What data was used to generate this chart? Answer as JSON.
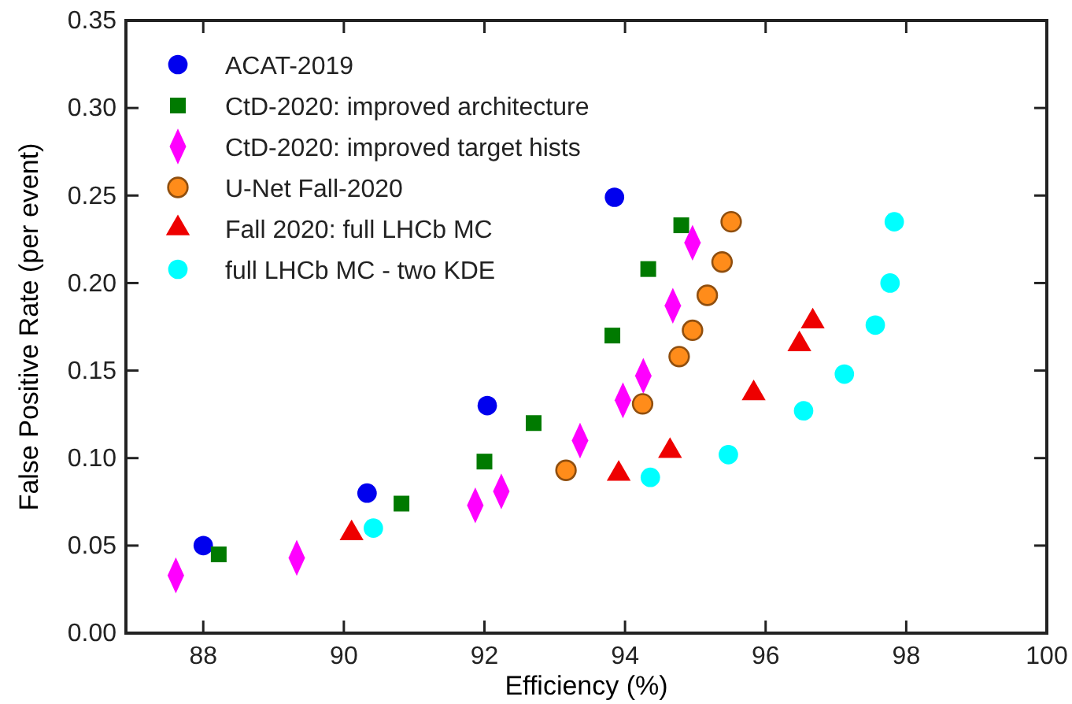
{
  "chart_data": {
    "type": "scatter",
    "xlabel": "Efficiency (%)",
    "ylabel": "False Positive Rate (per event)",
    "xlim": [
      86.9,
      100
    ],
    "xticks": [
      88,
      90,
      92,
      94,
      96,
      98,
      100
    ],
    "ylim": [
      0,
      0.35
    ],
    "yticks": [
      {
        "value": 0,
        "label": "0.00"
      },
      0.05,
      {
        "value": 0.1,
        "label": "0.10"
      },
      0.15,
      {
        "value": 0.2,
        "label": "0.20"
      },
      0.25,
      {
        "value": 0.3,
        "label": "0.30"
      },
      0.35
    ],
    "grid": false,
    "legend": "top left",
    "series": [
      {
        "name": "ACAT-2019",
        "color": "#0000ee",
        "marker": "circle",
        "x": [
          88.0,
          90.33,
          92.04,
          93.85
        ],
        "values": [
          0.05,
          0.08,
          0.13,
          0.249
        ]
      },
      {
        "name": "CtD-2020: improved architecture",
        "color": "#007a00",
        "marker": "square",
        "x": [
          88.22,
          90.82,
          92.0,
          92.7,
          93.82,
          94.33,
          94.8
        ],
        "values": [
          0.045,
          0.074,
          0.098,
          0.12,
          0.17,
          0.208,
          0.233
        ]
      },
      {
        "name": "CtD-2020: improved target hists",
        "color": "#ff00ff",
        "marker": "diamond",
        "x": [
          87.61,
          89.33,
          91.87,
          92.24,
          93.36,
          93.97,
          94.26,
          94.68,
          94.96
        ],
        "values": [
          0.033,
          0.043,
          0.073,
          0.081,
          0.11,
          0.133,
          0.147,
          0.187,
          0.223
        ]
      },
      {
        "name": "U-Net Fall-2020",
        "color": "#ff8c1a",
        "marker": "circle",
        "x": [
          93.16,
          94.25,
          94.77,
          94.96,
          95.17,
          95.38,
          95.51
        ],
        "values": [
          0.093,
          0.131,
          0.158,
          0.173,
          0.193,
          0.212,
          0.235
        ]
      },
      {
        "name": "Fall 2020: full LHCb MC",
        "color": "#ee0000",
        "marker": "triangle",
        "x": [
          90.11,
          93.91,
          94.64,
          95.83,
          96.48,
          96.67
        ],
        "values": [
          0.057,
          0.091,
          0.104,
          0.137,
          0.165,
          0.178
        ]
      },
      {
        "name": "full LHCb MC - two KDE",
        "color": "#00ffff",
        "marker": "circle",
        "x": [
          90.42,
          94.36,
          95.47,
          96.54,
          97.12,
          97.56,
          97.77,
          97.83
        ],
        "values": [
          0.06,
          0.089,
          0.102,
          0.127,
          0.148,
          0.176,
          0.2,
          0.235
        ]
      }
    ]
  }
}
